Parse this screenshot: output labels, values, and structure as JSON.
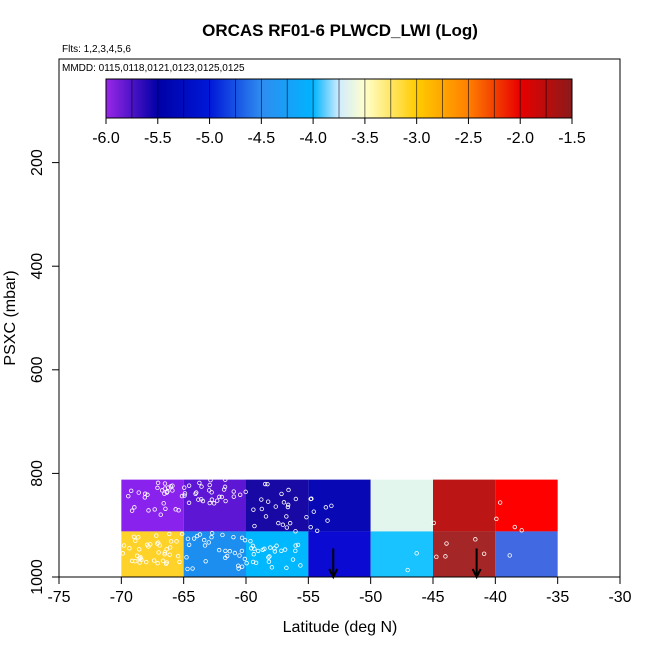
{
  "chart_data": {
    "type": "heatmap",
    "title": "ORCAS RF01-6 PLWCD_LWI (Log)",
    "subtitle_flights": "Flts: 1,2,3,4,5,6",
    "subtitle_dates": "MMDD: 0115,0118,0121,0123,0125,0125",
    "xlabel": "Latitude (deg N)",
    "ylabel": "PSXC (mbar)",
    "xlim": [
      -75,
      -30
    ],
    "ylim": [
      1000,
      0
    ],
    "x_ticks": [
      -75,
      -70,
      -65,
      -60,
      -55,
      -50,
      -45,
      -40,
      -35,
      -30
    ],
    "x_tick_labels": [
      "-75",
      "-70",
      "-65",
      "-60",
      "-55",
      "-50",
      "-45",
      "-40",
      "-35",
      "-30"
    ],
    "y_ticks": [
      200,
      400,
      600,
      800,
      1000
    ],
    "y_tick_labels": [
      "200",
      "400",
      "600",
      "800",
      "1000"
    ],
    "colorbar": {
      "min": -6.0,
      "max": -1.5,
      "ticks": [
        -6.0,
        -5.5,
        -5.0,
        -4.5,
        -4.0,
        -3.5,
        -3.0,
        -2.5,
        -2.0,
        -1.5
      ],
      "tick_labels": [
        "-6.0",
        "-5.5",
        "-5.0",
        "-4.5",
        "-4.0",
        "-3.5",
        "-3.0",
        "-2.5",
        "-2.0",
        "-1.5"
      ],
      "stops": [
        {
          "v": -6.0,
          "color": "#9a27e8"
        },
        {
          "v": -5.5,
          "color": "#0000a6"
        },
        {
          "v": -5.0,
          "color": "#0018d8"
        },
        {
          "v": -4.5,
          "color": "#2f8cf0"
        },
        {
          "v": -4.0,
          "color": "#00b4ff"
        },
        {
          "v": -3.75,
          "color": "#d0ecff"
        },
        {
          "v": -3.5,
          "color": "#ffffcc"
        },
        {
          "v": -3.0,
          "color": "#ffcc00"
        },
        {
          "v": -2.5,
          "color": "#ff7f00"
        },
        {
          "v": -2.0,
          "color": "#e80000"
        },
        {
          "v": -1.5,
          "color": "#8b1a1a"
        }
      ]
    },
    "cells": [
      {
        "lat0": -70,
        "lat1": -65,
        "p0": 812,
        "p1": 912,
        "color": "#8a22ee"
      },
      {
        "lat0": -65,
        "lat1": -60,
        "p0": 812,
        "p1": 912,
        "color": "#5d16d4"
      },
      {
        "lat0": -60,
        "lat1": -55,
        "p0": 812,
        "p1": 912,
        "color": "#1808a4"
      },
      {
        "lat0": -55,
        "lat1": -50,
        "p0": 812,
        "p1": 912,
        "color": "#0808b4"
      },
      {
        "lat0": -50,
        "lat1": -45,
        "p0": 812,
        "p1": 912,
        "color": "#e2f6ee"
      },
      {
        "lat0": -45,
        "lat1": -40,
        "p0": 812,
        "p1": 912,
        "color": "#bb1515"
      },
      {
        "lat0": -40,
        "lat1": -35,
        "p0": 812,
        "p1": 912,
        "color": "#ff0000"
      },
      {
        "lat0": -70,
        "lat1": -65,
        "p0": 912,
        "p1": 1000,
        "color": "#ffd22a"
      },
      {
        "lat0": -65,
        "lat1": -60,
        "p0": 912,
        "p1": 1000,
        "color": "#1b8ef0"
      },
      {
        "lat0": -60,
        "lat1": -55,
        "p0": 912,
        "p1": 1000,
        "color": "#00b8ff"
      },
      {
        "lat0": -55,
        "lat1": -50,
        "p0": 912,
        "p1": 1000,
        "color": "#0a0ad2"
      },
      {
        "lat0": -50,
        "lat1": -45,
        "p0": 912,
        "p1": 1000,
        "color": "#18c3ff"
      },
      {
        "lat0": -45,
        "lat1": -40,
        "p0": 912,
        "p1": 1000,
        "color": "#a52626"
      },
      {
        "lat0": -40,
        "lat1": -35,
        "p0": 912,
        "p1": 1000,
        "color": "#4169e1"
      }
    ],
    "arrows": [
      {
        "lat": -53.0,
        "p_top": 945,
        "p_bottom": 1000
      },
      {
        "lat": -41.5,
        "p_top": 945,
        "p_bottom": 1000
      }
    ],
    "sample_regions": [
      {
        "lat0": -70,
        "lat1": -65,
        "p0": 812,
        "p1": 880,
        "n": 28
      },
      {
        "lat0": -65,
        "lat1": -60,
        "p0": 812,
        "p1": 860,
        "n": 30
      },
      {
        "lat0": -60,
        "lat1": -55,
        "p0": 820,
        "p1": 912,
        "n": 22
      },
      {
        "lat0": -55,
        "lat1": -53,
        "p0": 840,
        "p1": 912,
        "n": 8
      },
      {
        "lat0": -70,
        "lat1": -65,
        "p0": 915,
        "p1": 975,
        "n": 40
      },
      {
        "lat0": -65,
        "lat1": -58,
        "p0": 915,
        "p1": 985,
        "n": 45
      },
      {
        "lat0": -58,
        "lat1": -55,
        "p0": 935,
        "p1": 990,
        "n": 12
      },
      {
        "lat0": -48,
        "lat1": -46,
        "p0": 950,
        "p1": 990,
        "n": 2
      },
      {
        "lat0": -45,
        "lat1": -40,
        "p0": 880,
        "p1": 995,
        "n": 6
      },
      {
        "lat0": -40,
        "lat1": -35,
        "p0": 850,
        "p1": 990,
        "n": 5
      }
    ]
  }
}
